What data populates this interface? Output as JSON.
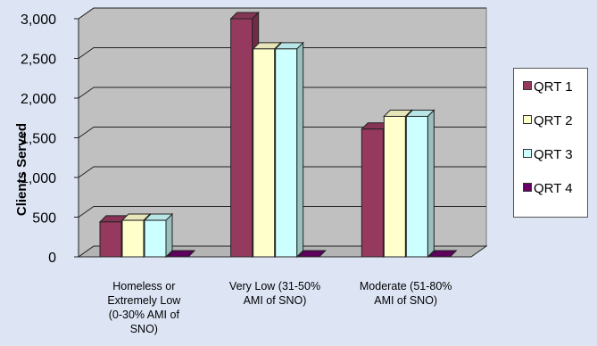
{
  "chart_data": {
    "type": "bar",
    "title": "",
    "xlabel": "",
    "ylabel": "Clients Served",
    "ylim": [
      0,
      3000
    ],
    "yticks": [
      "0",
      "500",
      "1,000",
      "1,500",
      "2,000",
      "2,500",
      "3,000"
    ],
    "grid": true,
    "legend_position": "right",
    "categories": [
      [
        "Homeless or",
        "Extremely Low",
        "(0-30% AMI of",
        "SNO)"
      ],
      [
        "Very Low (31-50%",
        "AMI of SNO)"
      ],
      [
        "Moderate (51-80%",
        "AMI of SNO)"
      ]
    ],
    "series": [
      {
        "name": "QRT 1",
        "color": "#953a5e",
        "values": [
          440,
          3000,
          1610
        ]
      },
      {
        "name": "QRT 2",
        "color": "#ffffcc",
        "values": [
          460,
          2620,
          1770
        ]
      },
      {
        "name": "QRT 3",
        "color": "#ccffff",
        "values": [
          460,
          2620,
          1770
        ]
      },
      {
        "name": "QRT 4",
        "color": "#660066",
        "values": [
          0,
          0,
          0
        ]
      }
    ]
  }
}
